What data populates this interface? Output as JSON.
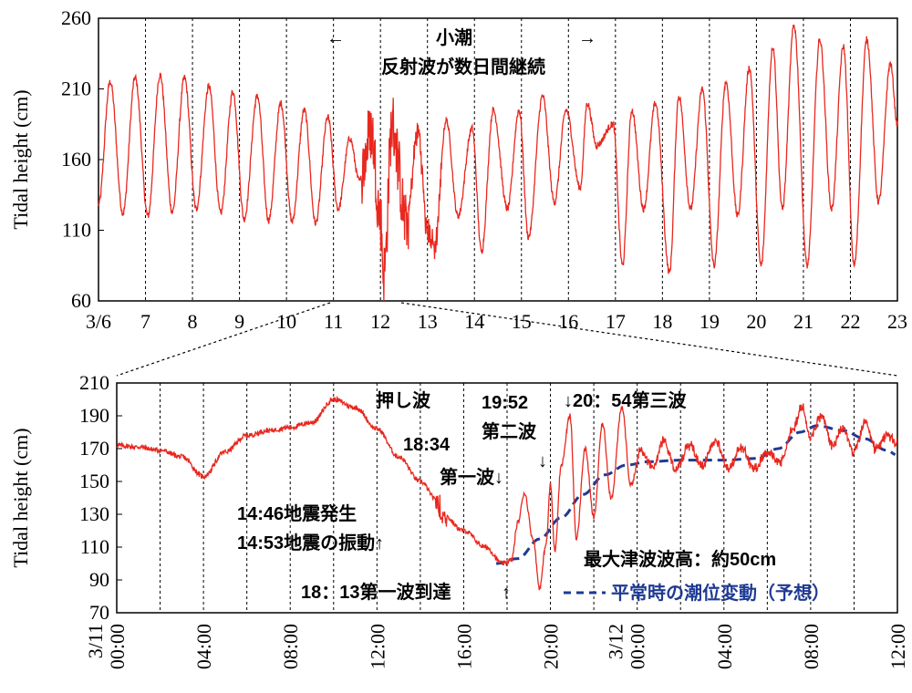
{
  "colors": {
    "series": "#e8281f",
    "normal": "#1f3a93",
    "axis": "#000000",
    "grid": "#000000"
  },
  "chart_data": [
    {
      "type": "line",
      "ylabel": "Tidal height (cm)",
      "ylim": [
        60,
        260
      ],
      "yticks": [
        "60",
        "110",
        "160",
        "210",
        "260"
      ],
      "x_tick_labels": [
        "3/6",
        "7",
        "8",
        "9",
        "10",
        "11",
        "12",
        "13",
        "14",
        "15",
        "16",
        "17",
        "18",
        "19",
        "20",
        "21",
        "22",
        "23"
      ],
      "grid": "vertical dashed at each day",
      "series": [
        {
          "x_unit": "days since 3/6 00:00",
          "extrema": [
            [
              0.0,
              128
            ],
            [
              0.25,
              215
            ],
            [
              0.52,
              122
            ],
            [
              0.78,
              218
            ],
            [
              1.05,
              120
            ],
            [
              1.31,
              220
            ],
            [
              1.57,
              123
            ],
            [
              1.83,
              218
            ],
            [
              2.08,
              125
            ],
            [
              2.35,
              212
            ],
            [
              2.6,
              122
            ],
            [
              2.86,
              208
            ],
            [
              3.1,
              118
            ],
            [
              3.38,
              205
            ],
            [
              3.62,
              117
            ],
            [
              3.88,
              200
            ],
            [
              4.12,
              116
            ],
            [
              4.38,
              195
            ],
            [
              4.62,
              115
            ],
            [
              4.88,
              190
            ],
            [
              5.1,
              125
            ],
            [
              5.35,
              175
            ],
            [
              5.55,
              145
            ],
            [
              5.8,
              180
            ],
            [
              6.0,
              120
            ],
            [
              6.07,
              78
            ],
            [
              6.25,
              185
            ],
            [
              6.55,
              115
            ],
            [
              6.8,
              180
            ],
            [
              7.0,
              110
            ],
            [
              7.15,
              98
            ],
            [
              7.4,
              188
            ],
            [
              7.65,
              120
            ],
            [
              7.95,
              182
            ],
            [
              8.15,
              95
            ],
            [
              8.4,
              195
            ],
            [
              8.7,
              125
            ],
            [
              8.95,
              195
            ],
            [
              9.15,
              105
            ],
            [
              9.45,
              205
            ],
            [
              9.7,
              130
            ],
            [
              9.95,
              195
            ],
            [
              10.25,
              140
            ],
            [
              10.4,
              200
            ],
            [
              10.6,
              170
            ],
            [
              10.95,
              185
            ],
            [
              11.15,
              85
            ],
            [
              11.35,
              195
            ],
            [
              11.6,
              125
            ],
            [
              11.85,
              200
            ],
            [
              12.15,
              80
            ],
            [
              12.35,
              205
            ],
            [
              12.6,
              125
            ],
            [
              12.85,
              210
            ],
            [
              13.1,
              85
            ],
            [
              13.35,
              215
            ],
            [
              13.6,
              120
            ],
            [
              13.85,
              225
            ],
            [
              14.1,
              85
            ],
            [
              14.35,
              240
            ],
            [
              14.55,
              125
            ],
            [
              14.8,
              255
            ],
            [
              15.08,
              85
            ],
            [
              15.35,
              245
            ],
            [
              15.6,
              125
            ],
            [
              15.85,
              240
            ],
            [
              16.08,
              85
            ],
            [
              16.35,
              245
            ],
            [
              16.6,
              130
            ],
            [
              16.85,
              228
            ],
            [
              17.0,
              185
            ]
          ],
          "values": []
        }
      ],
      "annotations": [
        "←",
        "小潮",
        "→",
        "反射波が数日間継続"
      ]
    },
    {
      "type": "line",
      "ylabel": "Tidal height (cm)",
      "ylim": [
        70,
        210
      ],
      "yticks": [
        "70",
        "90",
        "110",
        "130",
        "150",
        "170",
        "190",
        "210"
      ],
      "x_tick_labels": [
        [
          "3/11",
          "00:00"
        ],
        [
          "",
          ""
        ],
        [
          "",
          "04:00"
        ],
        [
          "",
          ""
        ],
        [
          "",
          "08:00"
        ],
        [
          "",
          ""
        ],
        [
          "",
          "12:00"
        ],
        [
          "",
          ""
        ],
        [
          "",
          "16:00"
        ],
        [
          "",
          ""
        ],
        [
          "",
          "20:00"
        ],
        [
          "",
          ""
        ],
        [
          "3/12",
          "00:00"
        ],
        [
          "",
          ""
        ],
        [
          "",
          "04:00"
        ],
        [
          "",
          ""
        ],
        [
          "",
          "08:00"
        ],
        [
          "",
          ""
        ],
        [
          "",
          "12:00"
        ]
      ],
      "grid": "vertical dashed every 2 hours",
      "series": [
        {
          "x_unit": "hours since 3/11 00:00",
          "observed": [
            [
              0,
              172
            ],
            [
              1,
              171
            ],
            [
              2,
              169
            ],
            [
              3,
              165
            ],
            [
              4,
              153
            ],
            [
              5,
              168
            ],
            [
              6,
              178
            ],
            [
              7,
              181
            ],
            [
              8,
              183
            ],
            [
              9,
              186
            ],
            [
              10,
              200
            ],
            [
              11,
              195
            ],
            [
              12,
              182
            ],
            [
              13,
              165
            ],
            [
              14,
              150
            ],
            [
              14.8,
              138
            ],
            [
              15,
              130
            ],
            [
              16,
              120
            ],
            [
              17,
              110
            ],
            [
              17.8,
              100
            ],
            [
              18.2,
              102
            ],
            [
              18.5,
              125
            ],
            [
              18.8,
              143
            ],
            [
              19.2,
              115
            ],
            [
              19.5,
              85
            ],
            [
              19.8,
              112
            ],
            [
              20.0,
              148
            ],
            [
              20.2,
              108
            ],
            [
              20.5,
              160
            ],
            [
              20.9,
              190
            ],
            [
              21.2,
              115
            ],
            [
              21.6,
              170
            ],
            [
              22.0,
              128
            ],
            [
              22.4,
              185
            ],
            [
              22.8,
              140
            ],
            [
              23.3,
              195
            ],
            [
              23.7,
              148
            ],
            [
              24.2,
              170
            ],
            [
              24.7,
              158
            ],
            [
              25.2,
              175
            ],
            [
              25.8,
              158
            ],
            [
              26.4,
              172
            ],
            [
              27,
              160
            ],
            [
              27.6,
              175
            ],
            [
              28.2,
              158
            ],
            [
              28.8,
              170
            ],
            [
              29.4,
              158
            ],
            [
              30,
              168
            ],
            [
              30.6,
              162
            ],
            [
              31.2,
              182
            ],
            [
              31.6,
              195
            ],
            [
              32,
              178
            ],
            [
              32.5,
              190
            ],
            [
              33,
              172
            ],
            [
              33.5,
              182
            ],
            [
              34,
              168
            ],
            [
              34.5,
              185
            ],
            [
              35,
              170
            ],
            [
              35.5,
              178
            ],
            [
              36,
              173
            ]
          ],
          "values": []
        },
        {
          "name": "平常時の潮位変動（予想）",
          "x_unit": "hours since 3/11 00:00",
          "values": [
            [
              17.5,
              100
            ],
            [
              18.5,
              103
            ],
            [
              19.5,
              115
            ],
            [
              20.5,
              128
            ],
            [
              21.5,
              142
            ],
            [
              22.5,
              154
            ],
            [
              23.5,
              160
            ],
            [
              24.5,
              162
            ],
            [
              26,
              163
            ],
            [
              28,
              163
            ],
            [
              29.5,
              164
            ],
            [
              30.5,
              170
            ],
            [
              31.5,
              180
            ],
            [
              32.3,
              184
            ],
            [
              33.5,
              181
            ],
            [
              34.5,
              176
            ],
            [
              35.5,
              169
            ],
            [
              36,
              166
            ]
          ]
        }
      ],
      "annotations": [
        "押し波",
        "19:52",
        "↓20：54第三波",
        "第二波",
        "↓",
        "18:34",
        "第一波↓",
        "14:46地震発生",
        "14:53地震の振動↑",
        "最大津波波高：約50cm",
        "18：13第一波到達",
        "↑",
        "平常時の潮位変動（予想）"
      ],
      "legend": "bottom-right"
    }
  ]
}
